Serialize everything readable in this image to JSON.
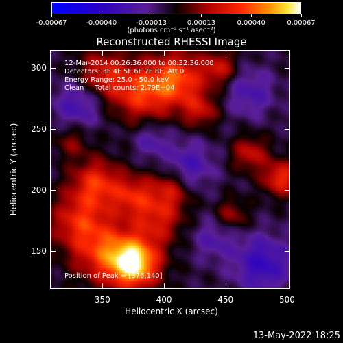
{
  "colorbar": {
    "ticks": [
      "-0.00067",
      "-0.00040",
      "-0.00013",
      "0.00013",
      "0.00040",
      "0.00067"
    ],
    "label": "(photons cm⁻² s⁻¹ asec⁻²)"
  },
  "chart_data": {
    "type": "heatmap",
    "title": "Reconstructed RHESSI Image",
    "xlabel": "Heliocentric X (arcsec)",
    "ylabel": "Heliocentric Y (arcsec)",
    "xlim": [
      308,
      502
    ],
    "ylim": [
      120,
      314
    ],
    "xticks": [
      "350",
      "400",
      "450",
      "500"
    ],
    "yticks": [
      "150",
      "200",
      "250",
      "300"
    ],
    "colorscale_range": [
      -0.00067,
      0.00067
    ],
    "annotations": [
      "12-Mar-2014 00:26:36.000 to 00:32:36.000",
      "Detectors: 3F 4F 5F 6F 7F 8F, Att 0",
      "Energy Range: 25.0 - 50.0 keV",
      "Clean     Total counts: 2.79E+04"
    ],
    "peak_label": "Position of Peak = [376,140]",
    "peak": [
      376,
      140
    ]
  },
  "footer": {
    "timestamp": "13-May-2022 18:25"
  }
}
